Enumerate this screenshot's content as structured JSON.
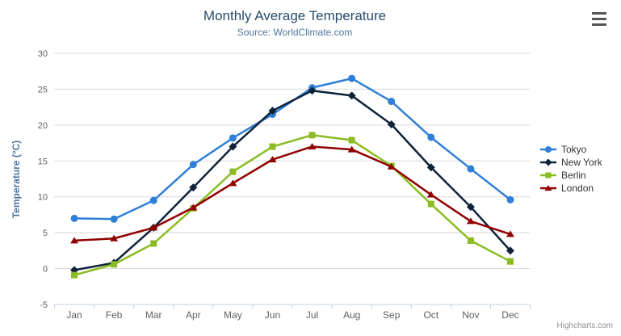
{
  "header": {
    "title": "Monthly Average Temperature",
    "subtitle": "Source: WorldClimate.com"
  },
  "credits": "Highcharts.com",
  "colors": {
    "title": "#274b6d",
    "subtitle": "#4d759e",
    "axis_labels": "#606060",
    "grid": "#d8d8d8",
    "axis_line": "#c0d0e0",
    "legend_text": "#333333",
    "credits_text": "#909090"
  },
  "chart_data": {
    "type": "line",
    "title": "Monthly Average Temperature",
    "subtitle": "Source: WorldClimate.com",
    "xlabel": "",
    "ylabel": "Temperature (°C)",
    "ylim": [
      -5,
      30
    ],
    "ytick_step": 5,
    "grid": true,
    "legend_position": "right",
    "categories": [
      "Jan",
      "Feb",
      "Mar",
      "Apr",
      "May",
      "Jun",
      "Jul",
      "Aug",
      "Sep",
      "Oct",
      "Nov",
      "Dec"
    ],
    "series": [
      {
        "name": "Tokyo",
        "color": "#2f7ed8",
        "marker": "circle",
        "values": [
          7.0,
          6.9,
          9.5,
          14.5,
          18.2,
          21.5,
          25.2,
          26.5,
          23.3,
          18.3,
          13.9,
          9.6
        ]
      },
      {
        "name": "New York",
        "color": "#0d233a",
        "marker": "diamond",
        "values": [
          -0.2,
          0.8,
          5.7,
          11.3,
          17.0,
          22.0,
          24.8,
          24.1,
          20.1,
          14.1,
          8.6,
          2.5
        ]
      },
      {
        "name": "Berlin",
        "color": "#8bbc21",
        "marker": "square",
        "values": [
          -0.9,
          0.6,
          3.5,
          8.4,
          13.5,
          17.0,
          18.6,
          17.9,
          14.3,
          9.0,
          3.9,
          1.0
        ]
      },
      {
        "name": "London",
        "color": "#910000",
        "marker": "triangle",
        "values": [
          3.9,
          4.2,
          5.7,
          8.5,
          11.9,
          15.2,
          17.0,
          16.6,
          14.2,
          10.3,
          6.6,
          4.8
        ]
      }
    ]
  }
}
